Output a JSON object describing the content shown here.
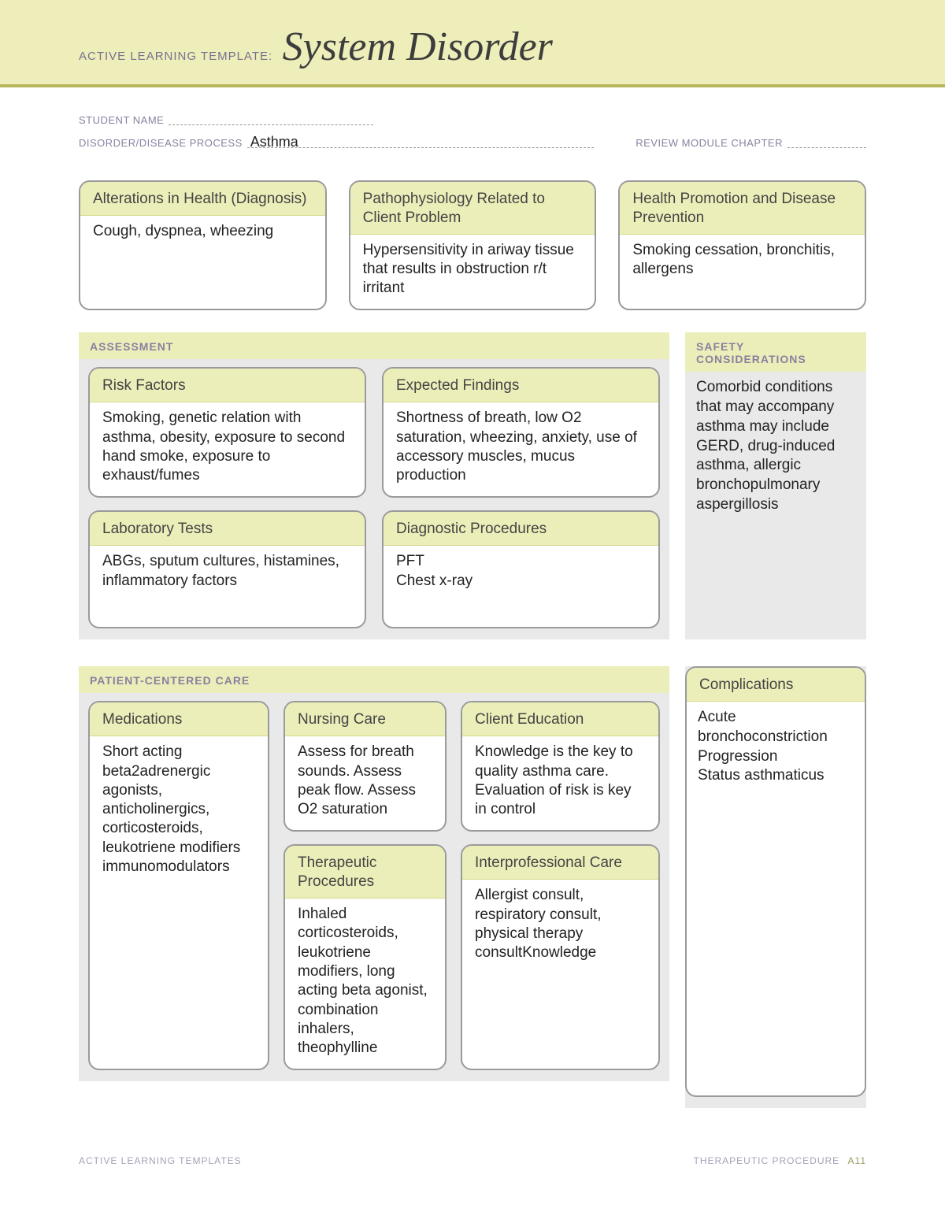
{
  "banner": {
    "label": "ACTIVE LEARNING TEMPLATE:",
    "title": "System Disorder"
  },
  "fields": {
    "student_name_label": "STUDENT NAME",
    "student_name_value": "",
    "disorder_label": "DISORDER/DISEASE PROCESS",
    "disorder_value": "Asthma",
    "review_label": "REVIEW MODULE CHAPTER",
    "review_value": ""
  },
  "top_boxes": {
    "alterations": {
      "title": "Alterations in Health (Diagnosis)",
      "body": "Cough, dyspnea, wheezing"
    },
    "patho": {
      "title": "Pathophysiology Related to Client Problem",
      "body": "Hypersensitivity in ariway tissue that results in obstruction r/t irritant"
    },
    "health_promo": {
      "title": "Health Promotion and Disease Prevention",
      "body": "Smoking cessation, bronchitis, allergens"
    }
  },
  "assessment": {
    "section_title": "ASSESSMENT",
    "risk": {
      "title": "Risk Factors",
      "body": "Smoking, genetic relation with asthma, obesity, exposure to second hand smoke, exposure to exhaust/fumes"
    },
    "expected": {
      "title": "Expected Findings",
      "body": "Shortness of breath, low O2 saturation, wheezing, anxiety, use of accessory muscles, mucus production"
    },
    "labs": {
      "title": "Laboratory Tests",
      "body": "ABGs, sputum cultures, histamines, inflammatory factors"
    },
    "diag": {
      "title": "Diagnostic Procedures",
      "body": "PFT\nChest x-ray"
    }
  },
  "safety": {
    "title": "SAFETY CONSIDERATIONS",
    "body": "Comorbid conditions that may accompany asthma may include GERD, drug-induced asthma, allergic bronchopulmonary aspergillosis"
  },
  "pcc": {
    "section_title": "PATIENT-CENTERED CARE",
    "nursing": {
      "title": "Nursing Care",
      "body": "Assess for breath sounds. Assess peak flow. Assess O2 saturation"
    },
    "meds": {
      "title": "Medications",
      "body": "Short acting beta2adrenergic agonists, anticholinergics, corticosteroids, leukotriene modifiers immunomodulators"
    },
    "client_ed": {
      "title": "Client Education",
      "body": "Knowledge is the key to quality asthma care. Evaluation of risk is key in control"
    },
    "therapeutic": {
      "title": "Therapeutic Procedures",
      "body": "Inhaled corticosteroids, leukotriene modifiers, long acting beta agonist, combination inhalers, theophylline"
    },
    "interprof": {
      "title": "Interprofessional Care",
      "body": "Allergist consult, respiratory consult, physical therapy consultKnowledge"
    }
  },
  "complications": {
    "title": "Complications",
    "body": "Acute bronchoconstriction\nProgression\nStatus asthmaticus"
  },
  "footer": {
    "left": "ACTIVE LEARNING TEMPLATES",
    "right_label": "THERAPEUTIC PROCEDURE",
    "page": "A11"
  },
  "colors": {
    "banner_bg": "#eeeeba",
    "banner_rule": "#b8b65a",
    "box_header_bg": "#eceeb9",
    "section_bg": "#e9e9e9",
    "label_color": "#8a7fa0",
    "border_color": "#9a9a9a"
  }
}
